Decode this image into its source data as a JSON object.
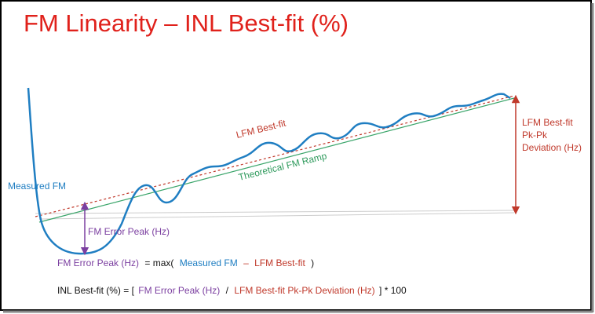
{
  "title": "FM Linearity – INL Best-fit (%)",
  "labels": {
    "lfm_best_fit": "LFM Best-fit",
    "theoretical_ramp": "Theoretical FM Ramp",
    "measured_fm": "Measured FM",
    "error_peak": "FM Error Peak (Hz)",
    "pk_pk": [
      "LFM Best-fit",
      "Pk-Pk",
      "Deviation (Hz)"
    ]
  },
  "formula1": [
    "FM Error Peak (Hz)",
    "= max(",
    "Measured FM",
    "–",
    "LFM Best-fit",
    ")"
  ],
  "formula2": [
    "INL Best-fit (%) = [",
    "FM Error Peak (Hz)",
    "/",
    "LFM Best-fit Pk-Pk Deviation (Hz)",
    "] * 100"
  ]
}
